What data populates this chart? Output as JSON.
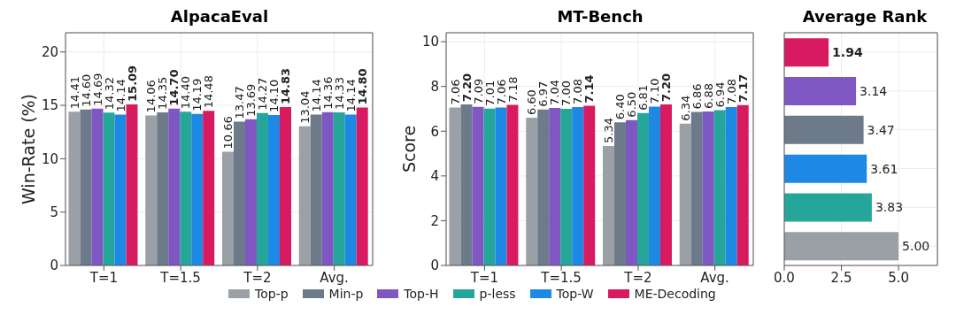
{
  "chart_data": [
    {
      "type": "bar",
      "title": "AlpacaEval",
      "ylabel": "Win-Rate (%)",
      "categories": [
        "T=1",
        "T=1.5",
        "T=2",
        "Avg."
      ],
      "series": [
        {
          "name": "Top-p",
          "color": "#9aa0a6",
          "values": [
            14.41,
            14.06,
            10.66,
            13.04
          ],
          "value_labels": [
            "14.41",
            "14.06",
            "10.66",
            "13.04"
          ]
        },
        {
          "name": "Min-p",
          "color": "#6c7a89",
          "values": [
            14.6,
            14.35,
            13.47,
            14.14
          ],
          "value_labels": [
            "14.60",
            "14.35",
            "13.47",
            "14.14"
          ]
        },
        {
          "name": "Top-H",
          "color": "#7e57c2",
          "values": [
            14.69,
            14.7,
            13.69,
            14.36
          ],
          "value_labels": [
            "14.69",
            "14.70",
            "13.69",
            "14.36"
          ]
        },
        {
          "name": "p-less",
          "color": "#26a69a",
          "values": [
            14.32,
            14.4,
            14.27,
            14.33
          ],
          "value_labels": [
            "14.32",
            "14.40",
            "14.27",
            "14.33"
          ]
        },
        {
          "name": "Top-W",
          "color": "#1e88e5",
          "values": [
            14.14,
            14.19,
            14.1,
            14.14
          ],
          "value_labels": [
            "14.14",
            "14.19",
            "14.10",
            "14.14"
          ]
        },
        {
          "name": "ME-Decoding",
          "color": "#d81b60",
          "values": [
            15.09,
            14.48,
            14.83,
            14.8
          ],
          "value_labels": [
            "15.09",
            "14.48",
            "14.83",
            "14.80"
          ]
        }
      ],
      "ylim": [
        0,
        21.8
      ],
      "yticks": [
        0,
        5,
        10,
        15,
        20
      ],
      "grid": true,
      "legend": "bottom"
    },
    {
      "type": "bar",
      "title": "MT-Bench",
      "ylabel": "Score",
      "categories": [
        "T=1",
        "T=1.5",
        "T=2",
        "Avg."
      ],
      "series": [
        {
          "color": "#9aa0a6",
          "values": [
            7.06,
            6.6,
            5.34,
            6.34
          ],
          "value_labels": [
            "7.06",
            "6.60",
            "5.34",
            "6.34"
          ]
        },
        {
          "color": "#6c7a89",
          "values": [
            7.2,
            6.97,
            6.4,
            6.86
          ],
          "value_labels": [
            "7.20",
            "6.97",
            "6.40",
            "6.86"
          ]
        },
        {
          "color": "#7e57c2",
          "values": [
            7.09,
            7.04,
            6.5,
            6.88
          ],
          "value_labels": [
            "7.09",
            "7.04",
            "6.50",
            "6.88"
          ]
        },
        {
          "color": "#26a69a",
          "values": [
            7.01,
            7.0,
            6.81,
            6.94
          ],
          "value_labels": [
            "7.01",
            "7.00",
            "6.81",
            "6.94"
          ]
        },
        {
          "color": "#1e88e5",
          "values": [
            7.06,
            7.08,
            7.1,
            7.08
          ],
          "value_labels": [
            "7.06",
            "7.08",
            "7.10",
            "7.08"
          ]
        },
        {
          "color": "#d81b60",
          "values": [
            7.18,
            7.14,
            7.2,
            7.17
          ],
          "value_labels": [
            "7.18",
            "7.14",
            "7.20",
            "7.17"
          ]
        }
      ],
      "ylim": [
        0,
        10.4
      ],
      "yticks": [
        0,
        2,
        4,
        6,
        8,
        10
      ],
      "grid": true
    },
    {
      "type": "bar",
      "title": "Average Rank",
      "orientation": "horizontal",
      "categories": [
        null,
        null,
        null,
        null,
        null,
        null
      ],
      "values": [
        1.94,
        3.14,
        3.47,
        3.61,
        3.83,
        5.0
      ],
      "value_labels": [
        "1.94",
        "3.14",
        "3.47",
        "3.61",
        "3.83",
        "5.00"
      ],
      "colors": [
        "#d81b60",
        "#7e57c2",
        "#6c7a89",
        "#1e88e5",
        "#26a69a",
        "#9aa0a6"
      ],
      "xlim": [
        0,
        6.7
      ],
      "xticks": [
        {
          "value": 0,
          "label": "0.0"
        },
        {
          "value": 2.5,
          "label": "2.5"
        },
        {
          "value": 5,
          "label": "5.0"
        }
      ],
      "grid": true
    }
  ]
}
